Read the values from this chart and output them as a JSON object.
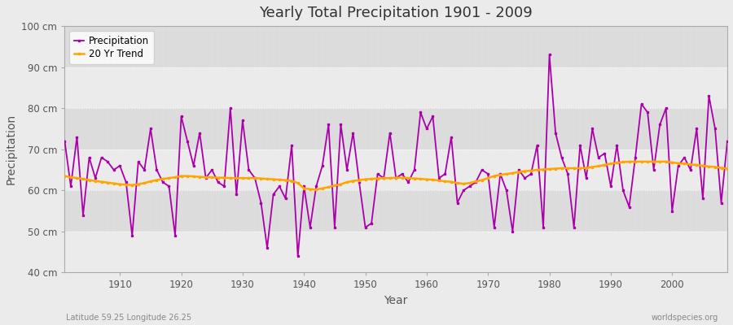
{
  "title": "Yearly Total Precipitation 1901 - 2009",
  "xlabel": "Year",
  "ylabel": "Precipitation",
  "subtitle_left": "Latitude 59.25 Longitude 26.25",
  "subtitle_right": "worldspecies.org",
  "ylim": [
    40,
    100
  ],
  "ytick_labels": [
    "40 cm",
    "50 cm",
    "60 cm",
    "70 cm",
    "80 cm",
    "90 cm",
    "100 cm"
  ],
  "ytick_values": [
    40,
    50,
    60,
    70,
    80,
    90,
    100
  ],
  "years": [
    1901,
    1902,
    1903,
    1904,
    1905,
    1906,
    1907,
    1908,
    1909,
    1910,
    1911,
    1912,
    1913,
    1914,
    1915,
    1916,
    1917,
    1918,
    1919,
    1920,
    1921,
    1922,
    1923,
    1924,
    1925,
    1926,
    1927,
    1928,
    1929,
    1930,
    1931,
    1932,
    1933,
    1934,
    1935,
    1936,
    1937,
    1938,
    1939,
    1940,
    1941,
    1942,
    1943,
    1944,
    1945,
    1946,
    1947,
    1948,
    1949,
    1950,
    1951,
    1952,
    1953,
    1954,
    1955,
    1956,
    1957,
    1958,
    1959,
    1960,
    1961,
    1962,
    1963,
    1964,
    1965,
    1966,
    1967,
    1968,
    1969,
    1970,
    1971,
    1972,
    1973,
    1974,
    1975,
    1976,
    1977,
    1978,
    1979,
    1980,
    1981,
    1982,
    1983,
    1984,
    1985,
    1986,
    1987,
    1988,
    1989,
    1990,
    1991,
    1992,
    1993,
    1994,
    1995,
    1996,
    1997,
    1998,
    1999,
    2000,
    2001,
    2002,
    2003,
    2004,
    2005,
    2006,
    2007,
    2008,
    2009
  ],
  "precip": [
    72,
    61,
    73,
    54,
    68,
    63,
    68,
    67,
    65,
    66,
    62,
    49,
    67,
    65,
    75,
    65,
    62,
    61,
    49,
    78,
    72,
    66,
    74,
    63,
    65,
    62,
    61,
    80,
    59,
    77,
    65,
    63,
    57,
    46,
    59,
    61,
    58,
    71,
    44,
    61,
    51,
    61,
    66,
    76,
    51,
    76,
    65,
    74,
    62,
    51,
    52,
    64,
    63,
    74,
    63,
    64,
    62,
    65,
    79,
    75,
    78,
    63,
    64,
    73,
    57,
    60,
    61,
    62,
    65,
    64,
    51,
    64,
    60,
    50,
    65,
    63,
    64,
    71,
    51,
    93,
    74,
    68,
    64,
    51,
    71,
    63,
    75,
    68,
    69,
    61,
    71,
    60,
    56,
    68,
    81,
    79,
    65,
    76,
    80,
    55,
    66,
    68,
    65,
    75,
    58,
    83,
    75,
    57,
    72
  ],
  "trend": [
    63.5,
    63.2,
    63.0,
    62.8,
    62.5,
    62.3,
    62.1,
    61.9,
    61.7,
    61.5,
    61.4,
    61.3,
    61.5,
    61.8,
    62.2,
    62.5,
    62.8,
    63.0,
    63.2,
    63.5,
    63.5,
    63.4,
    63.3,
    63.2,
    63.2,
    63.1,
    63.1,
    63.0,
    63.0,
    63.0,
    63.0,
    63.0,
    62.9,
    62.8,
    62.7,
    62.6,
    62.5,
    62.3,
    61.8,
    60.5,
    60.3,
    60.2,
    60.5,
    60.8,
    61.2,
    61.5,
    62.0,
    62.3,
    62.5,
    62.7,
    62.8,
    62.9,
    63.0,
    63.0,
    63.1,
    63.1,
    63.0,
    62.9,
    62.8,
    62.7,
    62.6,
    62.4,
    62.2,
    62.1,
    61.8,
    61.6,
    61.8,
    62.2,
    62.5,
    63.0,
    63.5,
    63.8,
    64.0,
    64.2,
    64.5,
    64.7,
    64.8,
    65.0,
    65.1,
    65.2,
    65.3,
    65.4,
    65.4,
    65.4,
    65.4,
    65.5,
    65.7,
    65.9,
    66.2,
    66.5,
    66.7,
    66.9,
    67.0,
    67.0,
    67.0,
    67.0,
    67.0,
    67.0,
    67.0,
    66.8,
    66.6,
    66.5,
    66.3,
    66.2,
    66.0,
    65.8,
    65.7,
    65.5,
    65.3
  ],
  "precip_color": "#AA00AA",
  "trend_color": "#FFA500",
  "bg_light": "#EBEBEB",
  "bg_dark": "#DCDCDC",
  "grid_color": "#FFFFFF",
  "spine_color": "#AAAAAA",
  "tick_color": "#888888",
  "title_color": "#333333",
  "label_color": "#555555",
  "watermark_color": "#888888"
}
